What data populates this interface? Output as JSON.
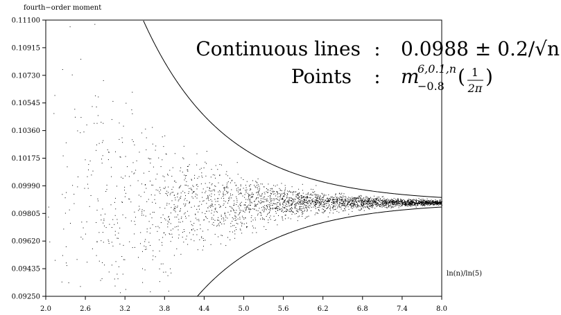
{
  "chart_data": {
    "type": "scatter",
    "title": "",
    "ylabel": "fourth−order moment",
    "xlabel": "ln(n)/ln(5)",
    "xlim": [
      2.0,
      8.0
    ],
    "ylim": [
      0.0925,
      0.111
    ],
    "x_ticks": [
      "2.0",
      "2.6",
      "3.2",
      "3.8",
      "4.4",
      "5.0",
      "5.6",
      "6.2",
      "6.8",
      "7.4",
      "8.0"
    ],
    "y_ticks": [
      "0.09250",
      "0.09435",
      "0.09620",
      "0.09805",
      "0.09990",
      "0.10175",
      "0.10360",
      "0.10545",
      "0.10730",
      "0.10915",
      "0.11100"
    ],
    "grid": false,
    "center": 0.0988,
    "amplitude": 0.2,
    "legend": {
      "line_label": "Continuous lines",
      "line_sep": ":",
      "line_formula": "0.0988 ± 0.2/√n",
      "points_label": "Points",
      "points_sep": ":",
      "points_m": "m",
      "points_sup": "6,0.1,n",
      "points_sub": "−0.8",
      "points_arg_open": "(",
      "points_frac_num": "1",
      "points_frac_den": "2π",
      "points_arg_close": ")"
    },
    "series": [
      {
        "name": "Continuous lines",
        "kind": "envelope"
      },
      {
        "name": "Points",
        "kind": "scatter",
        "count": 3000
      }
    ]
  }
}
